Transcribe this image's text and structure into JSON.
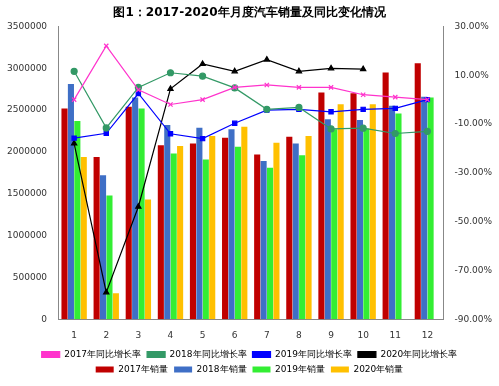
{
  "chart_data": {
    "type": "bar",
    "title": "图1：2017-2020年月度汽车销量及同比变化情况",
    "categories": [
      "1",
      "2",
      "3",
      "4",
      "5",
      "6",
      "7",
      "8",
      "9",
      "10",
      "11",
      "12"
    ],
    "ylim": [
      0,
      3500000
    ],
    "yticks": [
      0,
      500000,
      1000000,
      1500000,
      2000000,
      2500000,
      3000000,
      3500000
    ],
    "y2lim": [
      -90,
      30
    ],
    "y2ticks": [
      {
        "value": -90,
        "label": "-90.00%"
      },
      {
        "value": -70,
        "label": "-70.00%"
      },
      {
        "value": -50,
        "label": "-50.00%"
      },
      {
        "value": -30,
        "label": "-30.00%"
      },
      {
        "value": -10,
        "label": "-10.00%"
      },
      {
        "value": 10,
        "label": "10.00%"
      },
      {
        "value": 30,
        "label": "30.00%"
      }
    ],
    "grid": false,
    "legend": "bottom",
    "series": [
      {
        "name": "2017年销量",
        "type": "bar",
        "color": "#c00000",
        "values": [
          2520000,
          1940000,
          2540000,
          2080000,
          2100000,
          2170000,
          1970000,
          2180000,
          2710000,
          2700000,
          2950000,
          3060000
        ]
      },
      {
        "name": "2018年销量",
        "type": "bar",
        "color": "#3f6fc6",
        "values": [
          2810000,
          1720000,
          2650000,
          2320000,
          2290000,
          2270000,
          1890000,
          2100000,
          2390000,
          2380000,
          2550000,
          2660000
        ]
      },
      {
        "name": "2019年销量",
        "type": "bar",
        "color": "#33ee33",
        "values": [
          2370000,
          1480000,
          2520000,
          1980000,
          1910000,
          2060000,
          1810000,
          1960000,
          2270000,
          2280000,
          2460000,
          2650000
        ]
      },
      {
        "name": "2020年销量",
        "type": "bar",
        "color": "#ffc000",
        "values": [
          1940000,
          310000,
          1430000,
          2070000,
          2190000,
          2300000,
          2110000,
          2190000,
          2570000,
          2570000,
          null,
          null
        ]
      },
      {
        "name": "2017年同比增长率",
        "type": "line",
        "axis": "y2",
        "color": "#ff33cc",
        "marker": "cross",
        "values": [
          0,
          22,
          4,
          -2,
          0,
          5,
          6,
          5,
          5,
          2,
          1,
          0
        ]
      },
      {
        "name": "2018年同比增长率",
        "type": "line",
        "axis": "y2",
        "color": "#339966",
        "marker": "circle",
        "values": [
          11.6,
          -11.6,
          5,
          11,
          9.6,
          4.8,
          -4,
          -3.2,
          -12,
          -11.7,
          -13.9,
          -13
        ]
      },
      {
        "name": "2019年同比增长率",
        "type": "line",
        "axis": "y2",
        "color": "#0000ff",
        "marker": "square",
        "values": [
          -15.8,
          -13.8,
          2.5,
          -14,
          -16,
          -9.7,
          -4.3,
          -4,
          -5,
          -4,
          -3.6,
          0
        ]
      },
      {
        "name": "2020年同比增长率",
        "type": "line",
        "axis": "y2",
        "color": "#000000",
        "marker": "triangle",
        "values": [
          -18,
          -79,
          -43.9,
          4.4,
          14.6,
          11.6,
          16.4,
          11.6,
          12.8,
          12.5,
          null,
          null
        ]
      }
    ]
  }
}
